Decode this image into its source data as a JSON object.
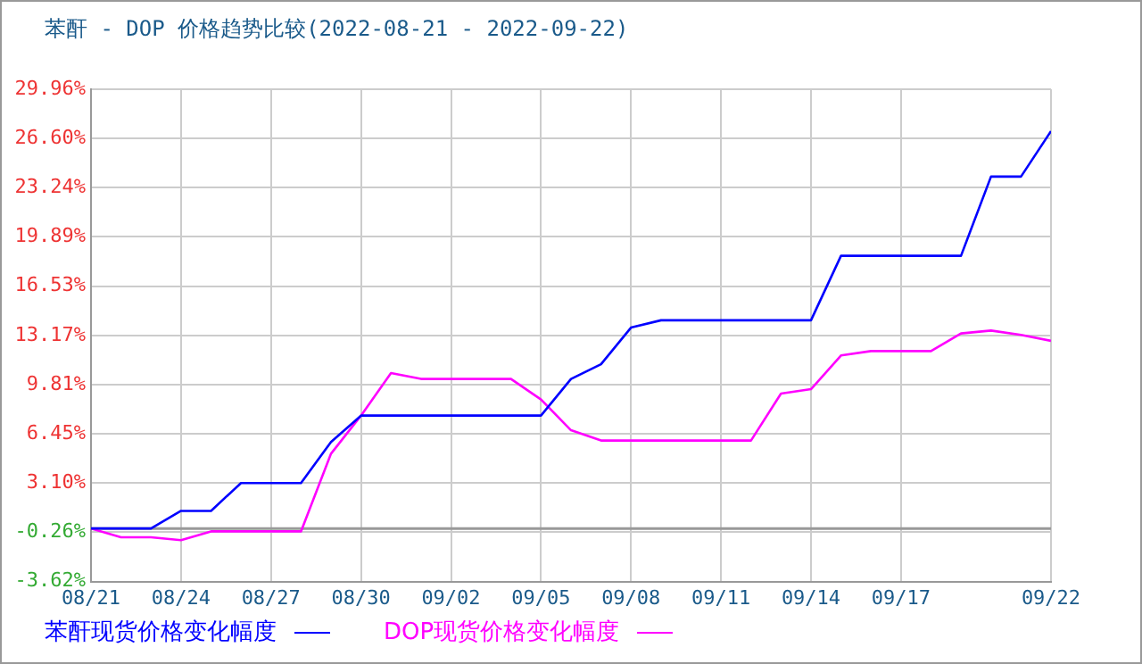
{
  "chart_data": {
    "type": "line",
    "title": "苯酐 - DOP 价格趋势比较(2022-08-21 - 2022-09-22)",
    "x": [
      "--08-21",
      "--08-22",
      "--08-23",
      "--08-24",
      "--08-25",
      "--08-26",
      "--08-27",
      "--08-28",
      "--08-29",
      "--08-30",
      "--08-31",
      "--09-01",
      "--09-02",
      "--09-03",
      "--09-04",
      "--09-05",
      "--09-06",
      "--09-07",
      "--09-08",
      "--09-09",
      "--09-10",
      "--09-11",
      "--09-12",
      "--09-13",
      "--09-14",
      "--09-15",
      "--09-16",
      "--09-17",
      "--09-18",
      "--09-19",
      "--09-20",
      "--09-21",
      "--09-22"
    ],
    "series": [
      {
        "name": "苯酐现货价格变化幅度",
        "color": "#0000ff",
        "values": [
          0,
          0,
          0,
          1.2,
          1.2,
          3.1,
          3.1,
          3.1,
          5.9,
          7.7,
          7.7,
          7.7,
          7.7,
          7.7,
          7.7,
          7.7,
          10.2,
          11.2,
          13.7,
          14.2,
          14.2,
          14.2,
          14.2,
          14.2,
          14.2,
          18.6,
          18.6,
          18.6,
          18.6,
          18.6,
          24,
          24,
          27.1
        ]
      },
      {
        "name": "DOP现货价格变化幅度",
        "color": "#ff00ff",
        "values": [
          0,
          -0.6,
          -0.6,
          -0.8,
          -0.2,
          -0.2,
          -0.2,
          -0.2,
          5.1,
          7.7,
          10.6,
          10.2,
          10.2,
          10.2,
          10.2,
          8.8,
          6.7,
          6,
          6,
          6,
          6,
          6,
          6,
          9.2,
          9.5,
          11.8,
          12.1,
          12.1,
          12.1,
          13.3,
          13.5,
          13.2,
          12.8
        ]
      }
    ],
    "xlim": [
      "--08-21",
      "--09-22"
    ],
    "xticks": [
      {
        "value": "--08-21",
        "label": "08/21"
      },
      {
        "value": "--08-24",
        "label": "08/24"
      },
      {
        "value": "--08-27",
        "label": "08/27"
      },
      {
        "value": "--08-30",
        "label": "08/30"
      },
      {
        "value": "--09-02",
        "label": "09/02"
      },
      {
        "value": "--09-05",
        "label": "09/05"
      },
      {
        "value": "--09-08",
        "label": "09/08"
      },
      {
        "value": "--09-11",
        "label": "09/11"
      },
      {
        "value": "--09-14",
        "label": "09/14"
      },
      {
        "value": "--09-17",
        "label": "09/17"
      },
      {
        "value": "--09-22",
        "label": "09/22"
      }
    ],
    "ylim": [
      -3.62,
      29.96
    ],
    "yticks": [
      {
        "value": -3.62,
        "label": "-3.62%"
      },
      {
        "value": -0.26,
        "label": "-0.26%"
      },
      {
        "value": 3.1,
        "label": "3.10%"
      },
      {
        "value": 6.45,
        "label": "6.45%"
      },
      {
        "value": 9.81,
        "label": "9.81%"
      },
      {
        "value": 13.17,
        "label": "13.17%"
      },
      {
        "value": 16.53,
        "label": "16.53%"
      },
      {
        "value": 19.89,
        "label": "19.89%"
      },
      {
        "value": 23.24,
        "label": "23.24%"
      },
      {
        "value": 26.6,
        "label": "26.60%"
      },
      {
        "value": 29.96,
        "label": "29.96%"
      }
    ],
    "ref_lines": [
      {
        "axis": "y",
        "value": 0,
        "color": "#999999"
      }
    ],
    "grid": true,
    "legend": "bottom",
    "marker": "none",
    "line_style": "solid"
  }
}
